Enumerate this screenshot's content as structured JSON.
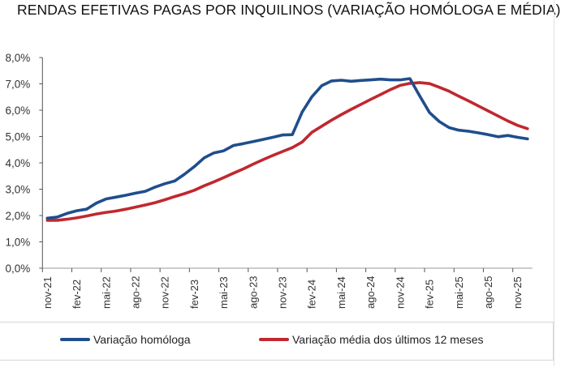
{
  "chart_data": {
    "type": "line",
    "title": "RENDAS EFETIVAS PAGAS POR INQUILINOS (VARIAÇÃO HOMÓLOGA E MÉDIA)",
    "xlabel": "",
    "ylabel": "",
    "ylim": [
      0,
      8
    ],
    "yticks": [
      "0,0%",
      "1,0%",
      "2,0%",
      "3,0%",
      "4,0%",
      "5,0%",
      "6,0%",
      "7,0%",
      "8,0%"
    ],
    "x": [
      "nov-21",
      "dez-21",
      "jan-22",
      "fev-22",
      "mar-22",
      "abr-22",
      "mai-22",
      "jun-22",
      "jul-22",
      "ago-22",
      "set-22",
      "out-22",
      "nov-22",
      "dez-22",
      "jan-23",
      "fev-23",
      "mar-23",
      "abr-23",
      "mai-23",
      "jun-23",
      "jul-23",
      "ago-23",
      "set-23",
      "out-23",
      "nov-23",
      "dez-23",
      "jan-24",
      "fev-24",
      "mar-24",
      "abr-24",
      "mai-24",
      "jun-24",
      "jul-24",
      "ago-24",
      "set-24",
      "out-24",
      "nov-24",
      "dez-24",
      "jan-25",
      "fev-25",
      "mar-25",
      "abr-25",
      "mai-25",
      "jun-25",
      "jul-25",
      "ago-25",
      "set-25",
      "out-25",
      "nov-25",
      "dez-25"
    ],
    "xtick_labels": [
      "nov-21",
      "fev-22",
      "mai-22",
      "ago-22",
      "nov-22",
      "fev-23",
      "mai-23",
      "ago-23",
      "nov-23",
      "fev-24",
      "mai-24",
      "ago-24",
      "nov-24",
      "fev-25",
      "mai-25",
      "ago-25",
      "nov-25"
    ],
    "grid": false,
    "legend_position": "bottom",
    "series": [
      {
        "name": "Variação homóloga",
        "color": "#1f4e8c",
        "values": [
          1.9,
          1.94,
          2.08,
          2.18,
          2.24,
          2.47,
          2.63,
          2.7,
          2.77,
          2.85,
          2.92,
          3.08,
          3.21,
          3.31,
          3.57,
          3.86,
          4.19,
          4.38,
          4.46,
          4.66,
          4.73,
          4.81,
          4.89,
          4.97,
          5.06,
          5.07,
          5.93,
          6.51,
          6.93,
          7.11,
          7.14,
          7.1,
          7.13,
          7.15,
          7.18,
          7.15,
          7.15,
          7.2,
          6.54,
          5.91,
          5.57,
          5.34,
          5.24,
          5.2,
          5.14,
          5.07,
          4.99,
          5.04,
          4.97,
          4.91
        ]
      },
      {
        "name": "Variação média dos últimos 12 meses",
        "color": "#c0282f",
        "values": [
          1.82,
          1.82,
          1.86,
          1.91,
          1.98,
          2.06,
          2.12,
          2.17,
          2.24,
          2.32,
          2.4,
          2.49,
          2.6,
          2.72,
          2.83,
          2.96,
          3.13,
          3.28,
          3.44,
          3.61,
          3.77,
          3.95,
          4.12,
          4.28,
          4.43,
          4.58,
          4.79,
          5.16,
          5.39,
          5.62,
          5.83,
          6.03,
          6.22,
          6.41,
          6.59,
          6.78,
          6.94,
          7.02,
          7.05,
          7.01,
          6.87,
          6.72,
          6.53,
          6.35,
          6.16,
          5.97,
          5.78,
          5.59,
          5.42,
          5.3
        ]
      }
    ]
  }
}
